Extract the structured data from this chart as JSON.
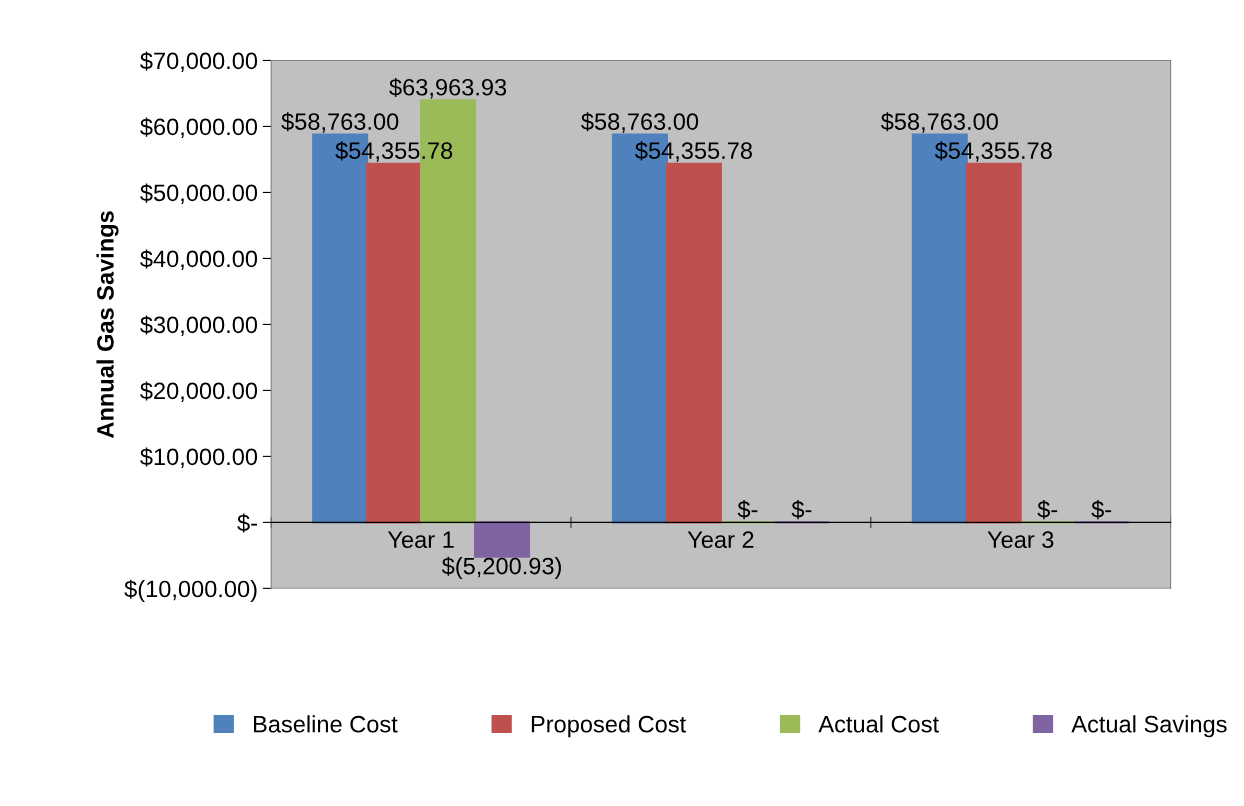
{
  "chart_data": {
    "type": "bar",
    "ylabel": "Annual Gas Savings",
    "categories": [
      "Year 1",
      "Year 2",
      "Year 3"
    ],
    "series": [
      {
        "name": "Baseline Cost",
        "color": "#4f81bd",
        "values": [
          58763.0,
          58763.0,
          58763.0
        ],
        "value_labels": [
          "$58,763.00",
          "$58,763.00",
          "$58,763.00"
        ]
      },
      {
        "name": "Proposed Cost",
        "color": "#c0504d",
        "values": [
          54355.78,
          54355.78,
          54355.78
        ],
        "value_labels": [
          "$54,355.78",
          "$54,355.78",
          "$54,355.78"
        ]
      },
      {
        "name": "Actual Cost",
        "color": "#9bbb59",
        "values": [
          63963.93,
          0,
          0
        ],
        "value_labels": [
          "$63,963.93",
          "$-",
          "$-"
        ]
      },
      {
        "name": "Actual Savings",
        "color": "#8064a2",
        "values": [
          -5200.93,
          0,
          0
        ],
        "value_labels": [
          "$(5,200.93)",
          "$-",
          "$-"
        ]
      }
    ],
    "ylim": [
      -10000,
      70000
    ],
    "yticks": [
      {
        "value": -10000,
        "label": "$(10,000.00)"
      },
      {
        "value": 0,
        "label": "$-"
      },
      {
        "value": 10000,
        "label": "$10,000.00"
      },
      {
        "value": 20000,
        "label": "$20,000.00"
      },
      {
        "value": 30000,
        "label": "$30,000.00"
      },
      {
        "value": 40000,
        "label": "$40,000.00"
      },
      {
        "value": 50000,
        "label": "$50,000.00"
      },
      {
        "value": 60000,
        "label": "$60,000.00"
      },
      {
        "value": 70000,
        "label": "$70,000.00"
      }
    ],
    "grid": false,
    "legend": "bottom"
  }
}
